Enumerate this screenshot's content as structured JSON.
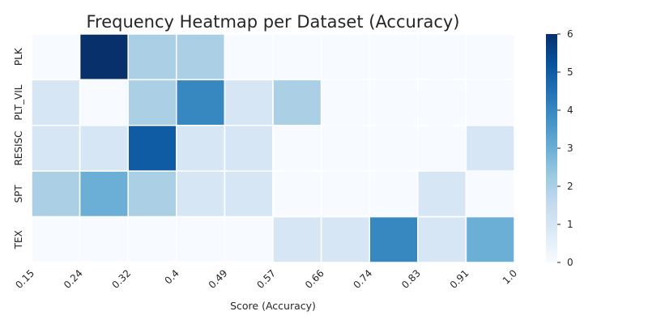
{
  "chart_data": {
    "type": "heatmap",
    "title": "Frequency Heatmap per Dataset (Accuracy)",
    "xlabel": "Score (Accuracy)",
    "ylabel": "",
    "x_ticks": [
      "0.15",
      "0.24",
      "0.32",
      "0.4",
      "0.49",
      "0.57",
      "0.66",
      "0.74",
      "0.83",
      "0.91",
      "1.0"
    ],
    "rows": [
      "PLK",
      "PLT_VIL",
      "RESISC",
      "SPT",
      "TEX"
    ],
    "values": [
      [
        0,
        6,
        2,
        2,
        0,
        0,
        0,
        0,
        0,
        0
      ],
      [
        1,
        0,
        2,
        4,
        1,
        2,
        0,
        0,
        0,
        0
      ],
      [
        1,
        1,
        5,
        1,
        1,
        0,
        0,
        0,
        0,
        1
      ],
      [
        2,
        3,
        2,
        1,
        1,
        0,
        0,
        0,
        1,
        0
      ],
      [
        0,
        0,
        0,
        0,
        0,
        1,
        1,
        4,
        1,
        3
      ]
    ],
    "colorbar": {
      "min": 0,
      "max": 6,
      "ticks": [
        "0",
        "1",
        "2",
        "3",
        "4",
        "5",
        "6"
      ]
    },
    "colormap": "Blues",
    "colors": {
      "low": "#f7fbff",
      "high": "#08306b",
      "cell_border": "#ffffff",
      "text": "#262626"
    }
  }
}
